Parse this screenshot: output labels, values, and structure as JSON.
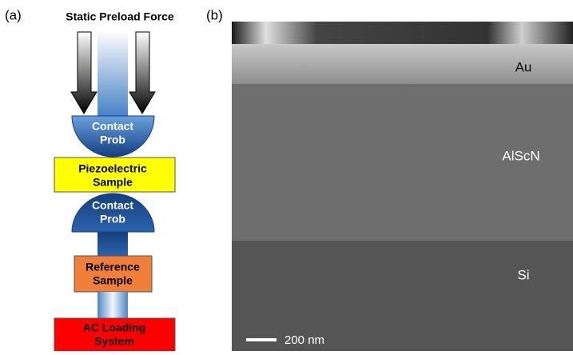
{
  "panel_a": {
    "label": "(a)",
    "title": "Static Preload Force",
    "blocks": [
      {
        "lines": [
          "Contact",
          "Prob"
        ]
      },
      {
        "lines": [
          "Piezoelectric",
          "Sample"
        ]
      },
      {
        "lines": [
          "Contact",
          "Prob"
        ]
      },
      {
        "lines": [
          "Reference",
          "Sample"
        ]
      },
      {
        "lines": [
          "AC Loading",
          "System"
        ]
      }
    ]
  },
  "panel_b": {
    "label": "(b)",
    "layers": [
      "Au",
      "AlScN",
      "Si"
    ],
    "scale_bar": "200 nm"
  }
}
